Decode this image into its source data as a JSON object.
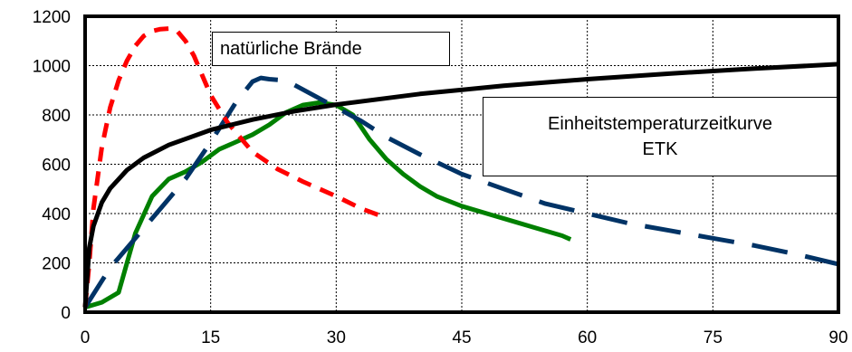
{
  "chart_data": {
    "type": "line",
    "title": "",
    "xlabel": "",
    "ylabel": "",
    "xlim": [
      0,
      90
    ],
    "ylim": [
      0,
      1200
    ],
    "xticks": [
      0,
      15,
      30,
      45,
      60,
      75,
      90
    ],
    "yticks": [
      0,
      200,
      400,
      600,
      800,
      1000,
      1200
    ],
    "grid": true,
    "annotations": {
      "natural_fires": "natürliche Brände",
      "etk_line1": "Einheitstemperaturzeitkurve",
      "etk_line2": "ETK"
    },
    "series": [
      {
        "id": "etk",
        "color": "#000000",
        "style": "solid",
        "x": [
          0,
          0.5,
          1,
          2,
          3,
          5,
          7,
          10,
          15,
          20,
          25,
          30,
          40,
          50,
          60,
          70,
          80,
          90
        ],
        "y": [
          20,
          261,
          349,
          445,
          502,
          576,
          626,
          678,
          739,
          781,
          815,
          842,
          885,
          918,
          945,
          968,
          988,
          1006
        ]
      },
      {
        "id": "natural-fire-red",
        "color": "#ff0000",
        "style": "dashed",
        "x": [
          0,
          0.5,
          1,
          2,
          3,
          4,
          5,
          6,
          7,
          8,
          9,
          10,
          11,
          12,
          13,
          14,
          15,
          17,
          20,
          23,
          26,
          30,
          33,
          35
        ],
        "y": [
          20,
          200,
          420,
          670,
          830,
          940,
          1020,
          1080,
          1120,
          1140,
          1148,
          1150,
          1140,
          1100,
          1040,
          960,
          880,
          770,
          650,
          580,
          530,
          470,
          420,
          395
        ]
      },
      {
        "id": "natural-fire-blue",
        "color": "#003366",
        "style": "long-dashed",
        "x": [
          0,
          3,
          6,
          9,
          12,
          15,
          18,
          20,
          21,
          22,
          24,
          27,
          30,
          33,
          36,
          40,
          45,
          50,
          55,
          60,
          65,
          70,
          75,
          80,
          85,
          90
        ],
        "y": [
          20,
          180,
          300,
          420,
          540,
          690,
          850,
          935,
          950,
          945,
          940,
          885,
          830,
          775,
          710,
          640,
          560,
          500,
          440,
          400,
          360,
          330,
          300,
          270,
          235,
          195
        ]
      },
      {
        "id": "natural-fire-green",
        "color": "#008000",
        "style": "solid",
        "x": [
          0,
          2,
          4,
          6,
          8,
          10,
          12,
          14,
          16,
          18,
          20,
          22,
          24,
          26,
          28,
          30,
          32,
          34,
          36,
          38,
          40,
          42,
          45,
          48,
          51,
          54,
          57,
          58
        ],
        "y": [
          20,
          40,
          80,
          320,
          470,
          540,
          570,
          610,
          660,
          690,
          720,
          760,
          810,
          840,
          850,
          840,
          800,
          700,
          620,
          560,
          510,
          470,
          430,
          400,
          370,
          340,
          310,
          295
        ]
      }
    ]
  }
}
